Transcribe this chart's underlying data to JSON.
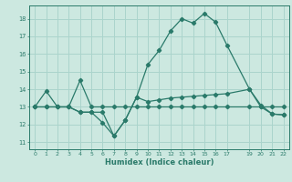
{
  "xlabel": "Humidex (Indice chaleur)",
  "bg_color": "#cce8e0",
  "grid_color": "#aad4cc",
  "line_color": "#2a7a6a",
  "xlim": [
    -0.5,
    22.5
  ],
  "ylim": [
    10.6,
    18.75
  ],
  "yticks": [
    11,
    12,
    13,
    14,
    15,
    16,
    17,
    18
  ],
  "xticks": [
    0,
    1,
    2,
    3,
    4,
    5,
    6,
    7,
    8,
    9,
    10,
    11,
    12,
    13,
    14,
    15,
    16,
    17,
    19,
    20,
    21,
    22
  ],
  "line1_x": [
    0,
    1,
    2,
    3,
    4,
    5,
    6,
    7,
    8,
    9,
    10,
    11,
    12,
    13,
    14,
    15,
    16,
    17,
    19,
    20,
    21,
    22
  ],
  "line1_y": [
    13.0,
    13.9,
    13.0,
    13.0,
    14.5,
    13.0,
    13.0,
    13.0,
    13.0,
    13.0,
    13.0,
    13.0,
    13.0,
    13.0,
    13.0,
    13.0,
    13.0,
    13.0,
    13.0,
    13.0,
    13.0,
    13.0
  ],
  "line2_x": [
    0,
    1,
    2,
    3,
    4,
    5,
    6,
    7,
    8,
    9,
    10,
    11,
    12,
    13,
    14,
    15,
    16,
    17,
    19,
    20,
    21,
    22
  ],
  "line2_y": [
    13.0,
    13.0,
    13.0,
    13.0,
    12.7,
    12.7,
    12.1,
    11.35,
    12.25,
    13.55,
    15.4,
    16.2,
    17.3,
    18.0,
    17.75,
    18.3,
    17.8,
    16.5,
    14.0,
    13.0,
    12.6,
    12.55
  ],
  "line3_x": [
    0,
    1,
    2,
    3,
    4,
    5,
    6,
    7,
    8,
    9,
    10,
    11,
    12,
    13,
    14,
    15,
    16,
    17,
    19,
    20,
    21,
    22
  ],
  "line3_y": [
    13.0,
    13.0,
    13.0,
    13.0,
    12.7,
    12.7,
    12.7,
    11.35,
    12.25,
    13.55,
    13.3,
    13.4,
    13.5,
    13.55,
    13.6,
    13.65,
    13.7,
    13.75,
    14.0,
    13.1,
    12.6,
    12.55
  ]
}
